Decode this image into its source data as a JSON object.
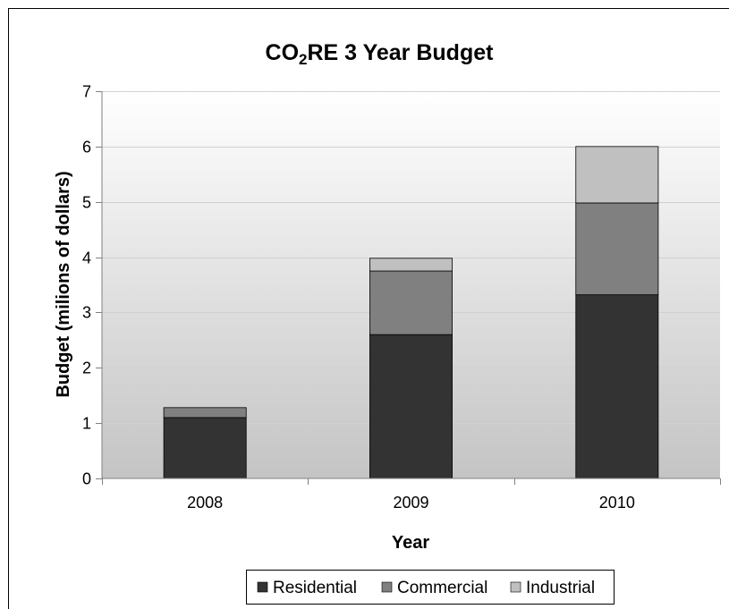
{
  "chart_data": {
    "type": "bar",
    "stacked": true,
    "title": {
      "part1": "CO",
      "subscript": "2",
      "part2": "RE 3 Year Budget"
    },
    "xlabel": "Year",
    "ylabel": "Budget (milions of dollars)",
    "categories": [
      "2008",
      "2009",
      "2010"
    ],
    "series": [
      {
        "name": "Residential",
        "color": "#333333",
        "values": [
          1.1,
          2.6,
          3.32
        ]
      },
      {
        "name": "Commercial",
        "color": "#808080",
        "values": [
          0.18,
          1.15,
          1.66
        ]
      },
      {
        "name": "Industrial",
        "color": "#c0c0c0",
        "values": [
          0.0,
          0.23,
          1.02
        ]
      }
    ],
    "ylim": [
      0,
      7
    ],
    "yticks": [
      "0",
      "1",
      "2",
      "3",
      "4",
      "5",
      "6",
      "7"
    ],
    "grid": true,
    "legend_position": "bottom"
  }
}
